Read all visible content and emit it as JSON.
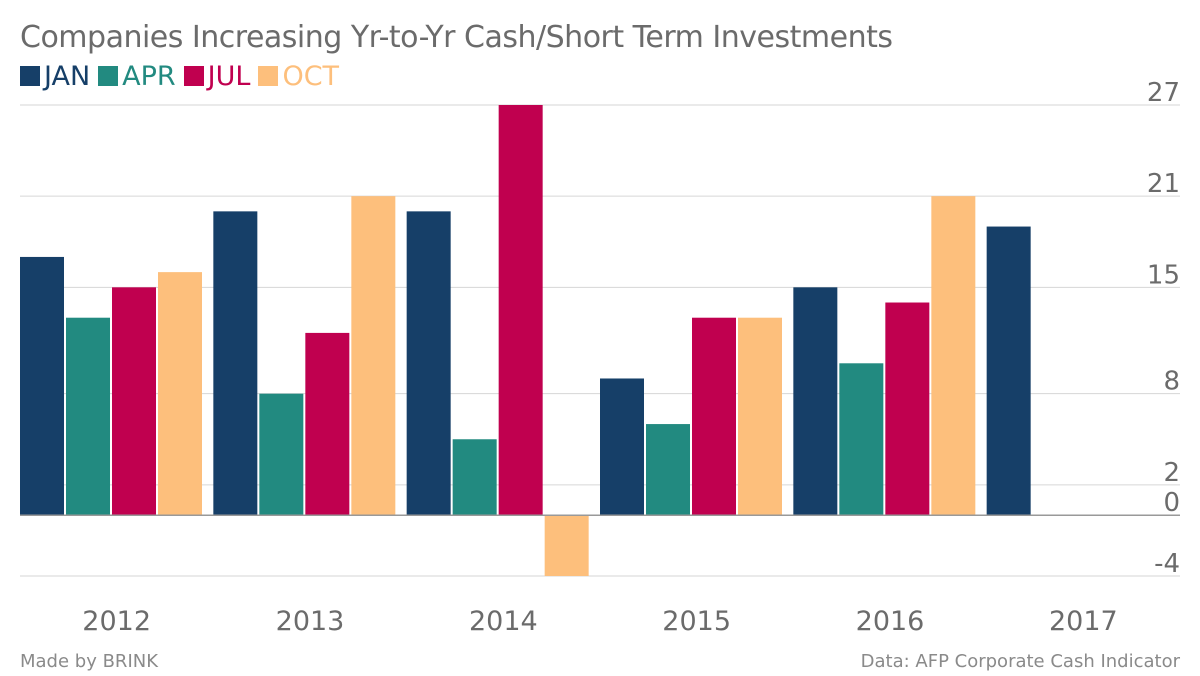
{
  "colors": {
    "JAN": "#163f68",
    "APR": "#228a80",
    "JUL": "#c0004f",
    "OCT": "#fdbf7c",
    "grid": "#d6d6d6",
    "zero": "#999999",
    "text": "#6b6b6b",
    "footer": "#8a8a8a"
  },
  "chart_data": {
    "type": "bar",
    "title": "Companies Increasing Yr-to-Yr Cash/Short Term Investments",
    "categories": [
      "2012",
      "2013",
      "2014",
      "2015",
      "2016",
      "2017"
    ],
    "series": [
      {
        "name": "JAN",
        "values": [
          17,
          20,
          20,
          9,
          15,
          19
        ]
      },
      {
        "name": "APR",
        "values": [
          13,
          8,
          5,
          6,
          10,
          null
        ]
      },
      {
        "name": "JUL",
        "values": [
          15,
          12,
          27,
          13,
          14,
          null
        ]
      },
      {
        "name": "OCT",
        "values": [
          16,
          21,
          -4,
          13,
          21,
          null
        ]
      }
    ],
    "y_ticks": [
      -4,
      0,
      2,
      8,
      15,
      21,
      27
    ],
    "ylim": [
      -4,
      27
    ],
    "grid": true,
    "legend_position": "top-left",
    "xlabel": "",
    "ylabel": ""
  },
  "footer": {
    "made_by": "Made by BRINK",
    "source": "Data: AFP Corporate Cash Indicator"
  }
}
